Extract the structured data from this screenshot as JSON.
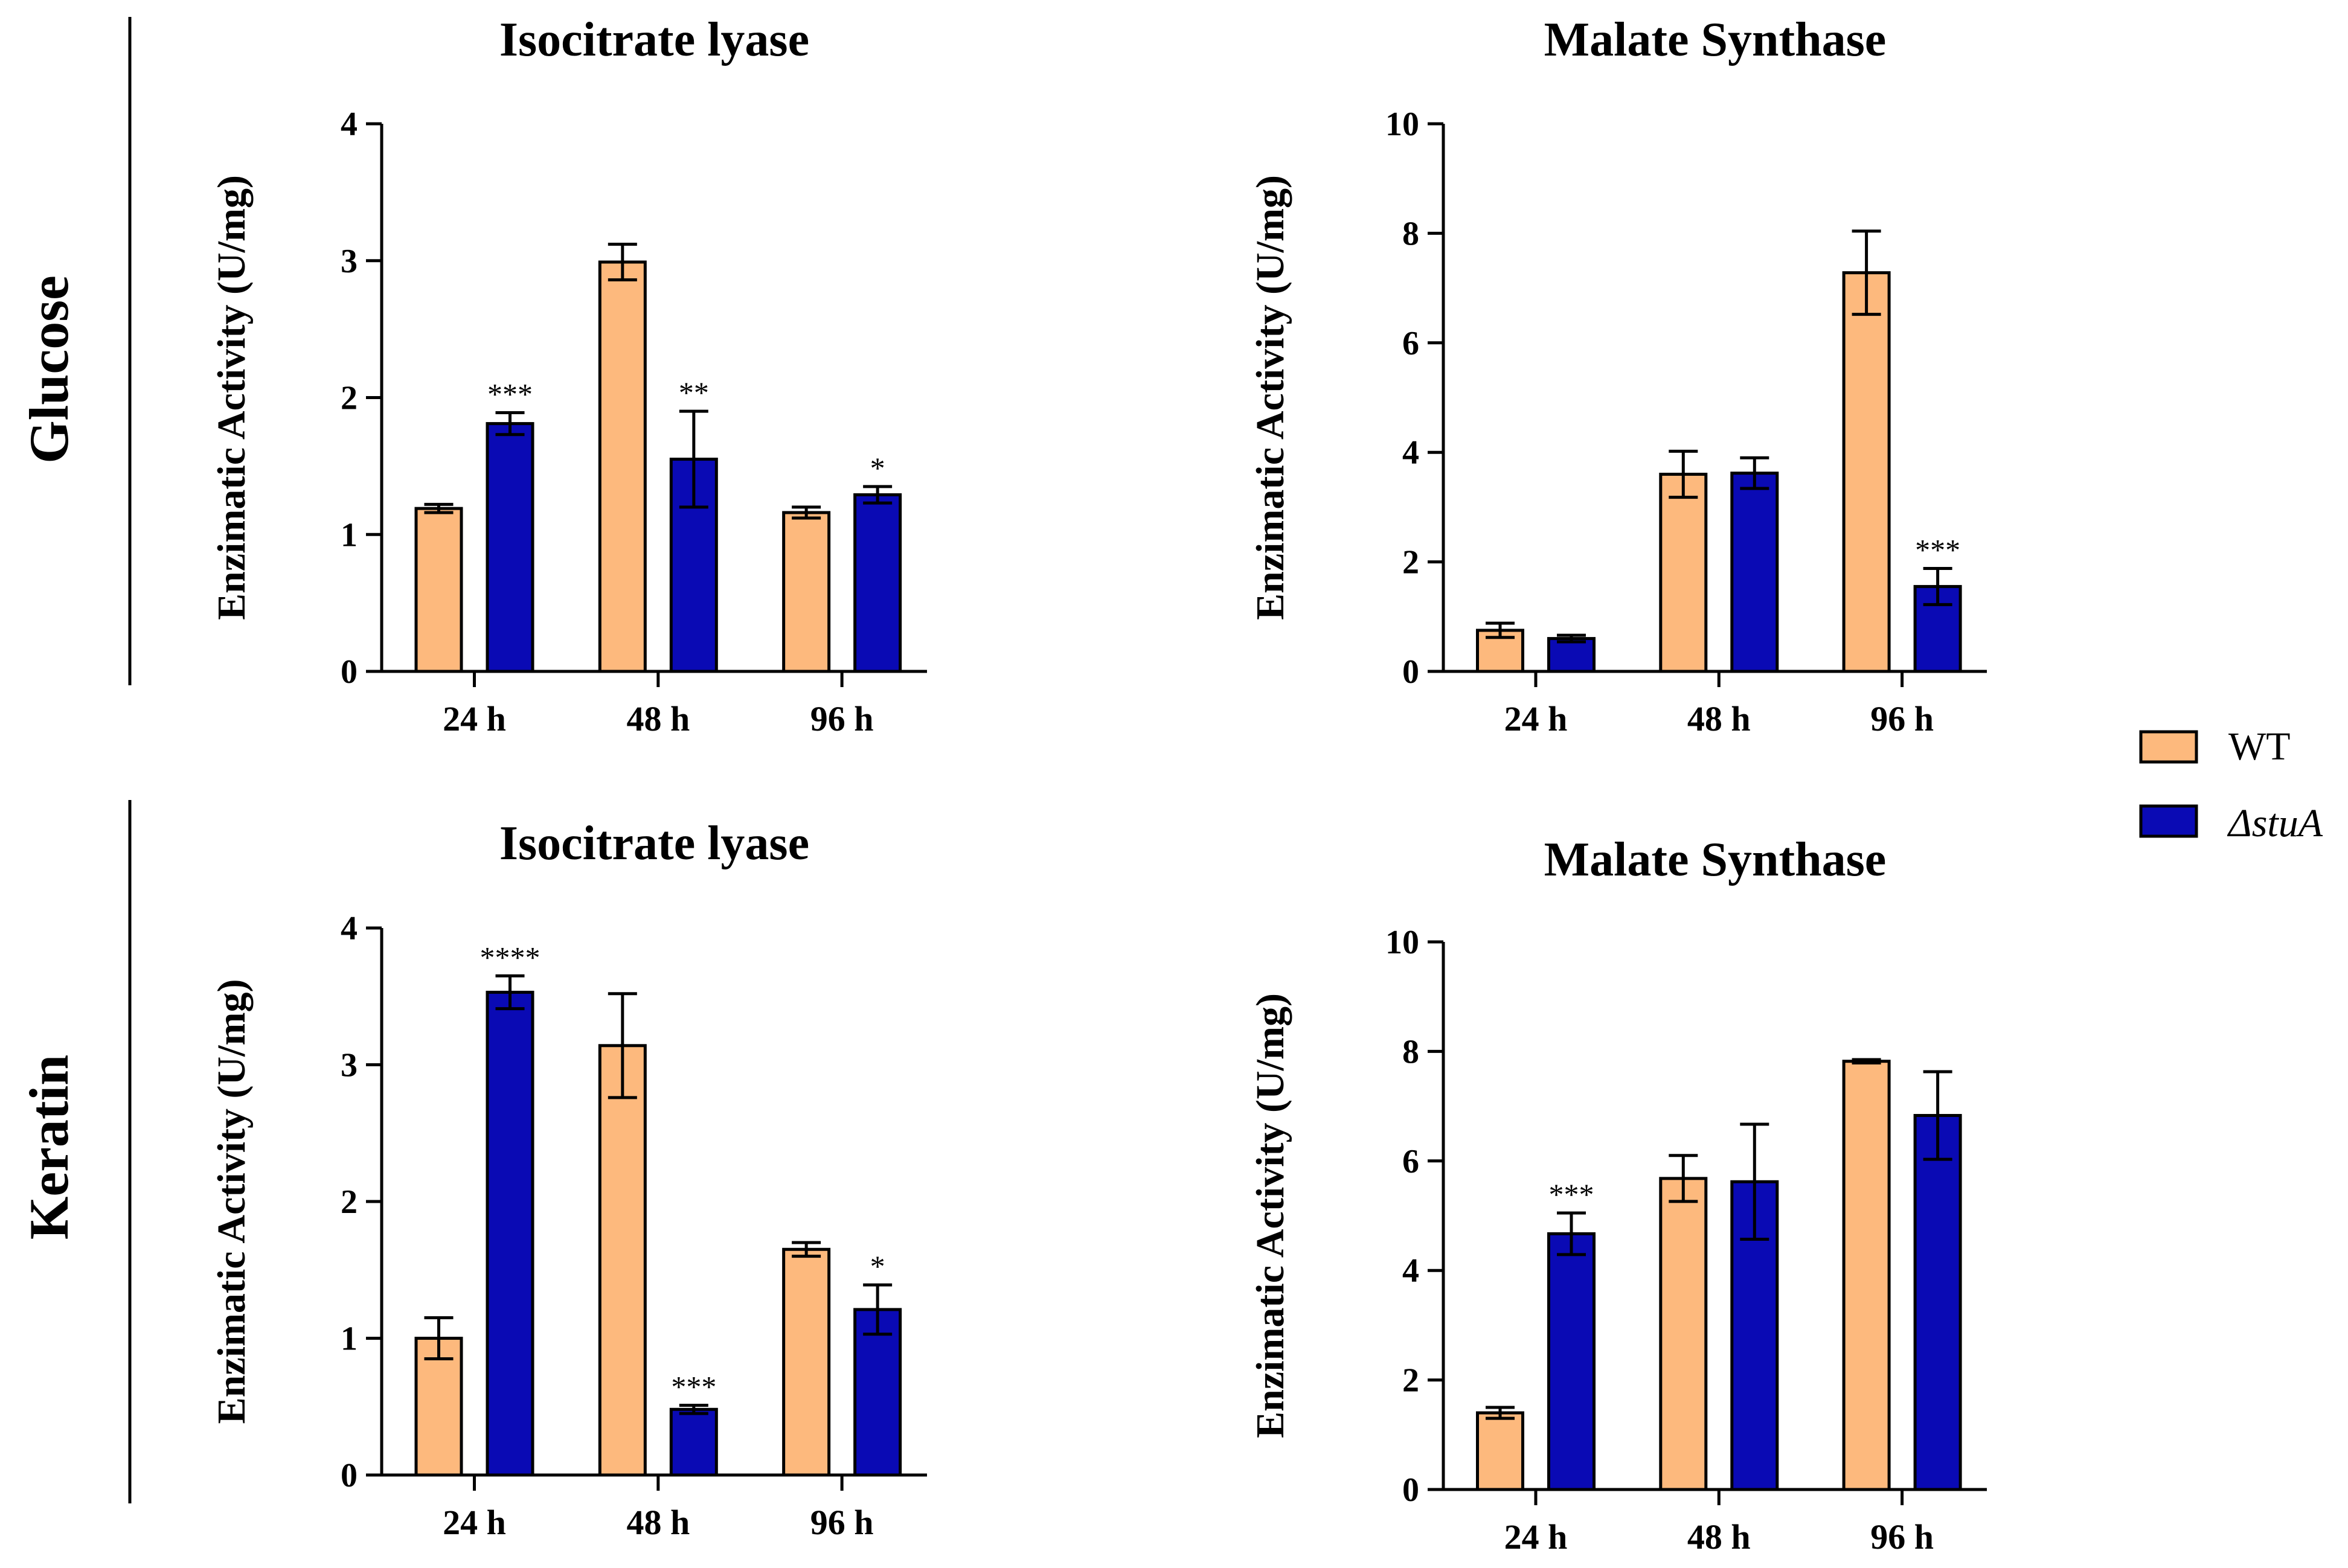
{
  "figure": {
    "row_labels": [
      "Glucose",
      "Keratin"
    ],
    "legend": {
      "items": [
        {
          "label": "WT",
          "color": "#FDB97D"
        },
        {
          "label": "ΔstuA",
          "color": "#0A0AB4"
        }
      ]
    }
  },
  "chart_data": [
    {
      "type": "bar",
      "title": "Isocitrate lyase",
      "row": "Glucose",
      "ylabel": "Enzimatic Activity (U/mg)",
      "xlabel": "",
      "categories": [
        "24 h",
        "48 h",
        "96 h"
      ],
      "ylim": [
        0,
        4
      ],
      "yticks": [
        0,
        1,
        2,
        3,
        4
      ],
      "series": [
        {
          "name": "WT",
          "values": [
            1.19,
            2.99,
            1.16
          ],
          "errors": [
            0.03,
            0.13,
            0.04
          ]
        },
        {
          "name": "ΔstuA",
          "values": [
            1.81,
            1.55,
            1.29
          ],
          "errors": [
            0.08,
            0.35,
            0.06
          ]
        }
      ],
      "annotations": [
        {
          "category": "24 h",
          "series": "ΔstuA",
          "text": "***"
        },
        {
          "category": "48 h",
          "series": "ΔstuA",
          "text": "**"
        },
        {
          "category": "96 h",
          "series": "ΔstuA",
          "text": "*"
        }
      ]
    },
    {
      "type": "bar",
      "title": "Malate Synthase",
      "row": "Glucose",
      "ylabel": "Enzimatic Activity (U/mg)",
      "xlabel": "",
      "categories": [
        "24 h",
        "48 h",
        "96 h"
      ],
      "ylim": [
        0,
        10
      ],
      "yticks": [
        0,
        2,
        4,
        6,
        8,
        10
      ],
      "series": [
        {
          "name": "WT",
          "values": [
            0.75,
            3.6,
            7.28
          ],
          "errors": [
            0.13,
            0.42,
            0.76
          ]
        },
        {
          "name": "ΔstuA",
          "values": [
            0.6,
            3.62,
            1.55
          ],
          "errors": [
            0.06,
            0.28,
            0.33
          ]
        }
      ],
      "annotations": [
        {
          "category": "96 h",
          "series": "ΔstuA",
          "text": "***"
        }
      ]
    },
    {
      "type": "bar",
      "title": "Isocitrate lyase",
      "row": "Keratin",
      "ylabel": "Enzimatic Activity (U/mg)",
      "xlabel": "",
      "categories": [
        "24 h",
        "48 h",
        "96 h"
      ],
      "ylim": [
        0,
        4
      ],
      "yticks": [
        0,
        1,
        2,
        3,
        4
      ],
      "series": [
        {
          "name": "WT",
          "values": [
            1.0,
            3.14,
            1.65
          ],
          "errors": [
            0.15,
            0.38,
            0.05
          ]
        },
        {
          "name": "ΔstuA",
          "values": [
            3.53,
            0.48,
            1.21
          ],
          "errors": [
            0.12,
            0.03,
            0.18
          ]
        }
      ],
      "annotations": [
        {
          "category": "24 h",
          "series": "ΔstuA",
          "text": "****"
        },
        {
          "category": "48 h",
          "series": "ΔstuA",
          "text": "***"
        },
        {
          "category": "96 h",
          "series": "ΔstuA",
          "text": "*"
        }
      ]
    },
    {
      "type": "bar",
      "title": "Malate Synthase",
      "row": "Keratin",
      "ylabel": "Enzimatic Activity (U/mg)",
      "xlabel": "",
      "categories": [
        "24 h",
        "48 h",
        "96 h"
      ],
      "ylim": [
        0,
        10
      ],
      "yticks": [
        0,
        2,
        4,
        6,
        8,
        10
      ],
      "series": [
        {
          "name": "WT",
          "values": [
            1.4,
            5.68,
            7.82
          ],
          "errors": [
            0.1,
            0.42,
            0.03
          ]
        },
        {
          "name": "ΔstuA",
          "values": [
            4.67,
            5.62,
            6.83
          ],
          "errors": [
            0.38,
            1.05,
            0.8
          ]
        }
      ],
      "annotations": [
        {
          "category": "24 h",
          "series": "ΔstuA",
          "text": "***"
        }
      ]
    }
  ]
}
